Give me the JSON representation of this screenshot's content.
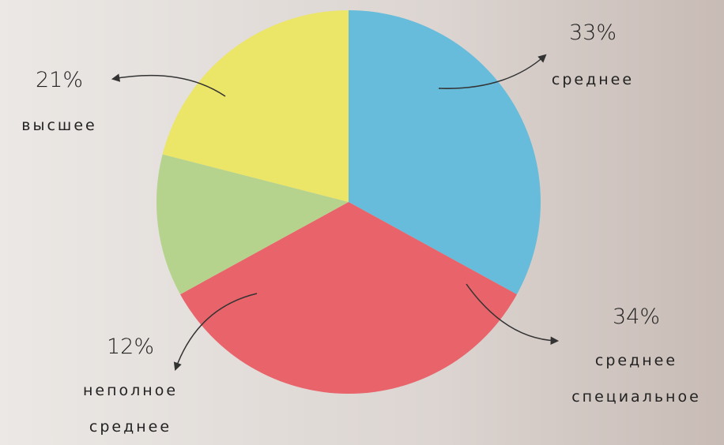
{
  "chart_data": {
    "type": "pie",
    "categories": [
      "среднее",
      "среднее специальное",
      "неполное среднее",
      "высшее"
    ],
    "values": [
      33,
      34,
      12,
      21
    ],
    "value_labels": [
      "33%",
      "34%",
      "12%",
      "21%"
    ],
    "colors": [
      "#67bcdb",
      "#e8636a",
      "#b5d38c",
      "#ebe568"
    ]
  }
}
